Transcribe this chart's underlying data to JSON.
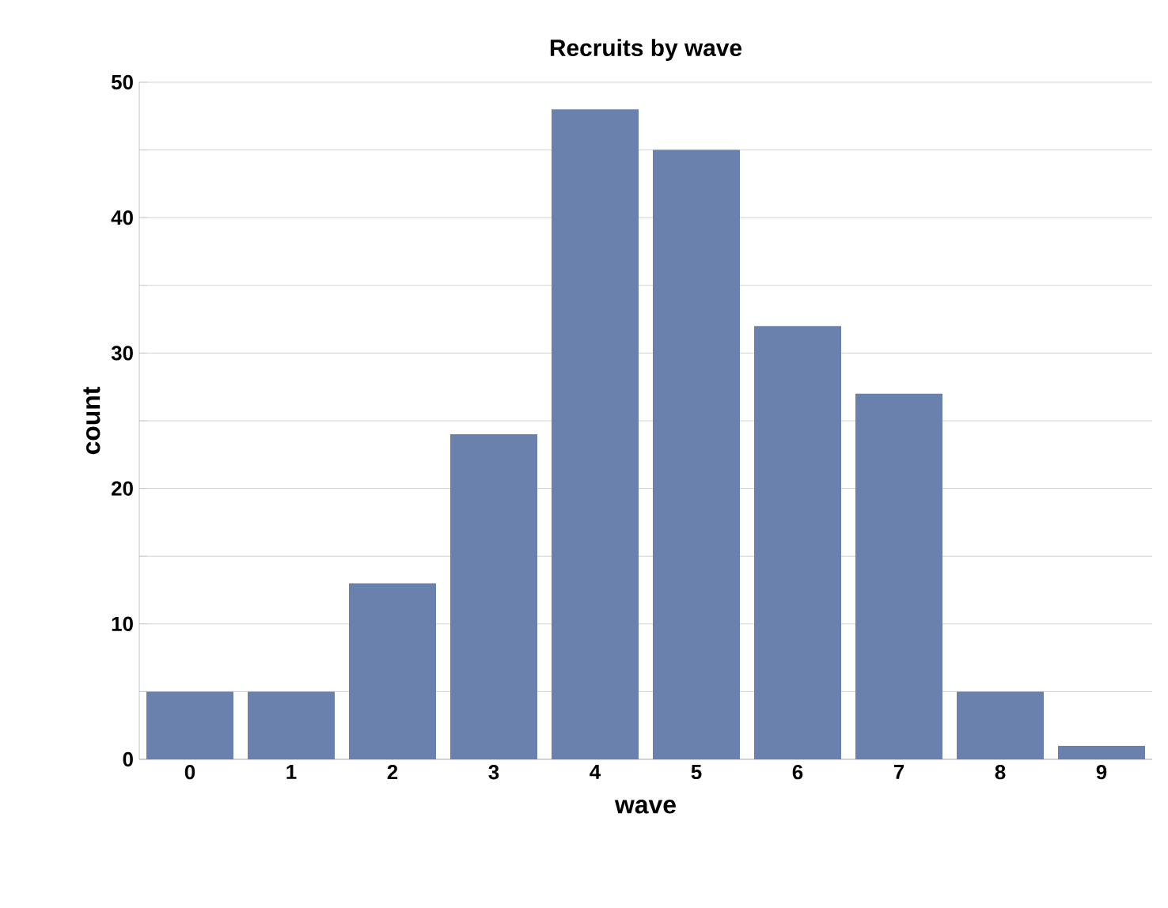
{
  "chart_data": {
    "type": "bar",
    "title": "Recruits by wave",
    "xlabel": "wave",
    "ylabel": "count",
    "categories": [
      "0",
      "1",
      "2",
      "3",
      "4",
      "5",
      "6",
      "7",
      "8",
      "9"
    ],
    "values": [
      5,
      5,
      13,
      24,
      48,
      45,
      32,
      27,
      5,
      1
    ],
    "color": "#6a80ad",
    "ylim": [
      0,
      50
    ],
    "yticks": [
      0,
      {
        "value": 5,
        "label": null
      },
      10,
      {
        "value": 15,
        "label": null
      },
      20,
      {
        "value": 25,
        "label": null
      },
      30,
      {
        "value": 35,
        "label": null
      },
      40,
      {
        "value": 45,
        "label": null
      },
      50
    ],
    "grid": "y"
  }
}
